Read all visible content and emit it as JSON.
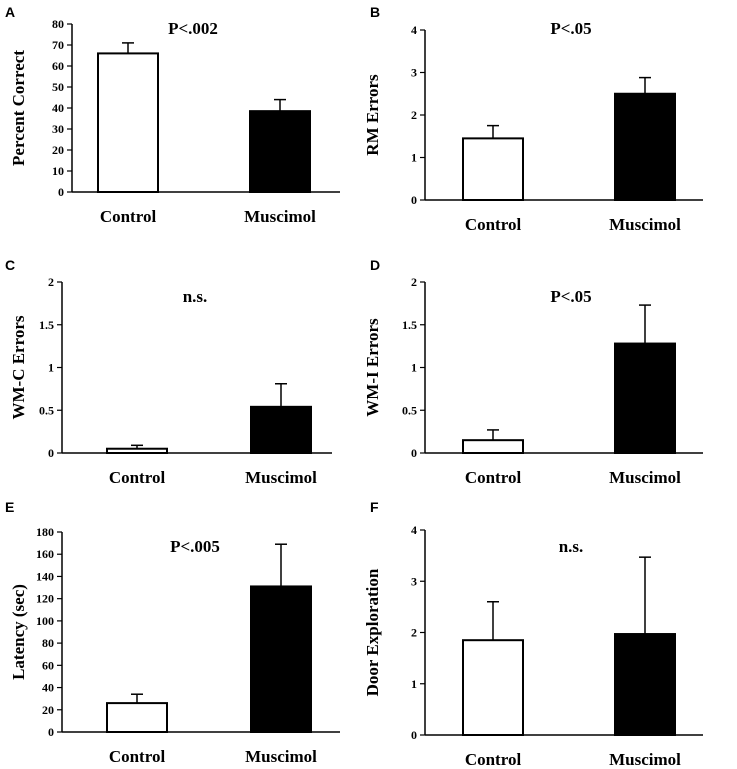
{
  "chart_data": [
    {
      "panel": "A",
      "type": "bar",
      "ylabel": "Percent Correct",
      "xlabel": "",
      "annotation": "P<.002",
      "categories": [
        "Control",
        "Muscimol"
      ],
      "values": [
        66,
        38.5
      ],
      "errors": [
        5,
        5.5
      ],
      "bar_colors": [
        "#ffffff",
        "#000000"
      ],
      "ylim": [
        0,
        80
      ],
      "yticks": [
        0,
        10,
        20,
        30,
        40,
        50,
        60,
        70,
        80
      ],
      "ytick_labels": [
        "0",
        "10",
        "20",
        "30",
        "40",
        "50",
        "60",
        "70",
        "80"
      ]
    },
    {
      "panel": "B",
      "type": "bar",
      "ylabel": "RM Errors",
      "xlabel": "",
      "annotation": "P<.05",
      "categories": [
        "Control",
        "Muscimol"
      ],
      "values": [
        1.45,
        2.5
      ],
      "errors": [
        0.3,
        0.38
      ],
      "bar_colors": [
        "#ffffff",
        "#000000"
      ],
      "ylim": [
        0,
        4
      ],
      "yticks": [
        0,
        1,
        2,
        3,
        4
      ],
      "ytick_labels": [
        "0",
        "1",
        "2",
        "3",
        "4"
      ]
    },
    {
      "panel": "C",
      "type": "bar",
      "ylabel": "WM-C Errors",
      "xlabel": "",
      "annotation": "n.s.",
      "categories": [
        "Control",
        "Muscimol"
      ],
      "values": [
        0.05,
        0.54
      ],
      "errors": [
        0.04,
        0.27
      ],
      "bar_colors": [
        "#ffffff",
        "#000000"
      ],
      "ylim": [
        0,
        2
      ],
      "yticks": [
        0,
        0.5,
        1,
        1.5,
        2
      ],
      "ytick_labels": [
        "0",
        "0.5",
        "1",
        "1.5",
        "2"
      ]
    },
    {
      "panel": "D",
      "type": "bar",
      "ylabel": "WM-I Errors",
      "xlabel": "",
      "annotation": "P<.05",
      "categories": [
        "Control",
        "Muscimol"
      ],
      "values": [
        0.15,
        1.28
      ],
      "errors": [
        0.12,
        0.45
      ],
      "bar_colors": [
        "#ffffff",
        "#000000"
      ],
      "ylim": [
        0,
        2
      ],
      "yticks": [
        0,
        0.5,
        1,
        1.5,
        2
      ],
      "ytick_labels": [
        "0",
        "0.5",
        "1",
        "1.5",
        "2"
      ]
    },
    {
      "panel": "E",
      "type": "bar",
      "ylabel": "Latency (sec)",
      "xlabel": "",
      "annotation": "P<.005",
      "categories": [
        "Control",
        "Muscimol"
      ],
      "values": [
        26,
        131
      ],
      "errors": [
        8,
        38
      ],
      "bar_colors": [
        "#ffffff",
        "#000000"
      ],
      "ylim": [
        0,
        180
      ],
      "yticks": [
        0,
        20,
        40,
        60,
        80,
        100,
        120,
        140,
        160,
        180
      ],
      "ytick_labels": [
        "0",
        "20",
        "40",
        "60",
        "80",
        "100",
        "120",
        "140",
        "160",
        "180"
      ]
    },
    {
      "panel": "F",
      "type": "bar",
      "ylabel": "Door Exploration",
      "xlabel": "",
      "annotation": "n.s.",
      "categories": [
        "Control",
        "Muscimol"
      ],
      "values": [
        1.85,
        1.97
      ],
      "errors": [
        0.75,
        1.5
      ],
      "bar_colors": [
        "#ffffff",
        "#000000"
      ],
      "ylim": [
        0,
        4
      ],
      "yticks": [
        0,
        1,
        2,
        3,
        4
      ],
      "ytick_labels": [
        "0",
        "1",
        "2",
        "3",
        "4"
      ]
    }
  ]
}
